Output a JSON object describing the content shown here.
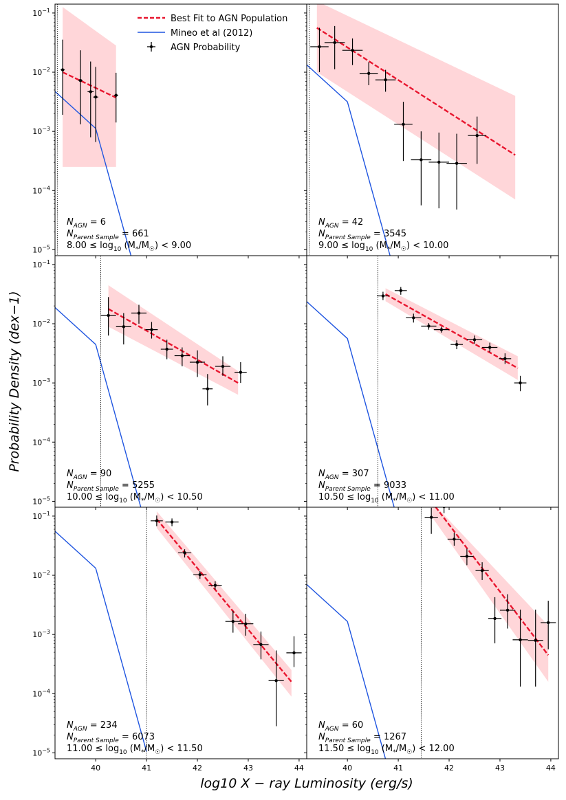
{
  "chart_data": {
    "type": "scatter",
    "xlabel": "log10 X − ray Luminosity (erg/s)",
    "ylabel": "Probability Density (dex−1)",
    "xlim": [
      39.2,
      44.15
    ],
    "ylim_log10": [
      -5.1,
      -0.85
    ],
    "x_ticks": [
      40,
      41,
      42,
      43,
      44
    ],
    "y_ticks": [
      {
        "label": "10",
        "exp": "−1",
        "log": -1
      },
      {
        "label": "10",
        "exp": "−2",
        "log": -2
      },
      {
        "label": "10",
        "exp": "−3",
        "log": -3
      },
      {
        "label": "10",
        "exp": "−4",
        "log": -4
      },
      {
        "label": "10",
        "exp": "−5",
        "log": -5
      }
    ],
    "legend": {
      "placement": "upper-center of top-left panel",
      "entries": [
        {
          "key": "fit",
          "label": "Best Fit to AGN Population",
          "color": "#e8162f",
          "style": "dashed"
        },
        {
          "key": "mineo",
          "label": "Mineo et al (2012)",
          "color": "#1f55e0",
          "style": "solid"
        },
        {
          "key": "points",
          "label": "AGN Probability",
          "color": "#000000",
          "style": "errorbar"
        }
      ]
    },
    "mineo_curve": [
      [
        39.0,
        -1.72
      ],
      [
        40.0,
        -2.5
      ],
      [
        41.0,
        -5.6
      ]
    ],
    "panels": [
      {
        "n_agn": "6",
        "n_parent": "661",
        "range_lo": "8.00",
        "range_hi": "9.00",
        "cutoff_x": 39.25,
        "mineo_offset": -0.45,
        "fit": {
          "x": [
            39.35,
            40.4
          ],
          "y": [
            -2.0,
            -2.43
          ]
        },
        "band": {
          "x": [
            39.35,
            40.4
          ],
          "lo": [
            -3.6,
            -3.6
          ],
          "hi": [
            -0.9,
            -1.55
          ]
        },
        "points": [
          {
            "x": 39.35,
            "y": -1.96,
            "xerr": 0.04,
            "lo": -2.72,
            "hi": -1.45
          },
          {
            "x": 39.7,
            "y": -2.14,
            "xerr": 0.04,
            "lo": -2.88,
            "hi": -1.63
          },
          {
            "x": 39.9,
            "y": -2.33,
            "xerr": 0.06,
            "lo": -3.1,
            "hi": -1.82
          },
          {
            "x": 40.0,
            "y": -2.42,
            "xerr": 0.05,
            "lo": -3.18,
            "hi": -1.91
          },
          {
            "x": 40.4,
            "y": -2.39,
            "xerr": 0.04,
            "lo": -2.85,
            "hi": -2.01
          }
        ]
      },
      {
        "n_agn": "42",
        "n_parent": "3545",
        "range_lo": "9.00",
        "range_hi": "10.00",
        "cutoff_x": 39.25,
        "mineo_offset": 0.0,
        "fit": {
          "x": [
            39.4,
            43.3
          ],
          "y": [
            -1.25,
            -3.4
          ]
        },
        "band": {
          "x": [
            39.4,
            43.3
          ],
          "lo": [
            -2.0,
            -4.15
          ],
          "hi": [
            -0.8,
            -2.4
          ]
        },
        "points": [
          {
            "x": 39.45,
            "y": -1.57,
            "xerr": 0.18,
            "lo": -2.0,
            "hi": -1.25
          },
          {
            "x": 39.75,
            "y": -1.5,
            "xerr": 0.2,
            "lo": -1.95,
            "hi": -1.22
          },
          {
            "x": 40.1,
            "y": -1.63,
            "xerr": 0.2,
            "lo": -1.88,
            "hi": -1.43
          },
          {
            "x": 40.42,
            "y": -2.02,
            "xerr": 0.18,
            "lo": -2.22,
            "hi": -1.83
          },
          {
            "x": 40.75,
            "y": -2.13,
            "xerr": 0.2,
            "lo": -2.33,
            "hi": -1.96
          },
          {
            "x": 41.1,
            "y": -2.88,
            "xerr": 0.18,
            "lo": -3.5,
            "hi": -2.5
          },
          {
            "x": 41.45,
            "y": -3.48,
            "xerr": 0.2,
            "lo": -4.25,
            "hi": -3.0
          },
          {
            "x": 41.8,
            "y": -3.52,
            "xerr": 0.2,
            "lo": -4.3,
            "hi": -3.02
          },
          {
            "x": 42.15,
            "y": -3.54,
            "xerr": 0.2,
            "lo": -4.32,
            "hi": -3.04
          },
          {
            "x": 42.55,
            "y": -3.07,
            "xerr": 0.18,
            "lo": -3.55,
            "hi": -2.75
          }
        ]
      },
      {
        "n_agn": "90",
        "n_parent": "5255",
        "range_lo": "10.00",
        "range_hi": "10.50",
        "cutoff_x": 40.1,
        "mineo_offset": 0.15,
        "fit": {
          "x": [
            40.25,
            42.8
          ],
          "y": [
            -1.75,
            -3.0
          ]
        },
        "band": {
          "x": [
            40.25,
            42.8
          ],
          "lo": [
            -2.05,
            -3.2
          ],
          "hi": [
            -1.35,
            -2.8
          ]
        },
        "points": [
          {
            "x": 40.25,
            "y": -1.86,
            "xerr": 0.15,
            "lo": -2.2,
            "hi": -1.55
          },
          {
            "x": 40.55,
            "y": -2.05,
            "xerr": 0.15,
            "lo": -2.35,
            "hi": -1.82
          },
          {
            "x": 40.85,
            "y": -1.82,
            "xerr": 0.15,
            "lo": -2.0,
            "hi": -1.68
          },
          {
            "x": 41.1,
            "y": -2.1,
            "xerr": 0.12,
            "lo": -2.25,
            "hi": -1.97
          },
          {
            "x": 41.4,
            "y": -2.43,
            "xerr": 0.12,
            "lo": -2.6,
            "hi": -2.27
          },
          {
            "x": 41.7,
            "y": -2.54,
            "xerr": 0.15,
            "lo": -2.72,
            "hi": -2.4
          },
          {
            "x": 42.0,
            "y": -2.65,
            "xerr": 0.15,
            "lo": -2.9,
            "hi": -2.45
          },
          {
            "x": 42.2,
            "y": -3.1,
            "xerr": 0.1,
            "lo": -3.38,
            "hi": -2.85
          },
          {
            "x": 42.5,
            "y": -2.72,
            "xerr": 0.15,
            "lo": -2.88,
            "hi": -2.55
          },
          {
            "x": 42.85,
            "y": -2.82,
            "xerr": 0.12,
            "lo": -3.0,
            "hi": -2.65
          }
        ]
      },
      {
        "n_agn": "307",
        "n_parent": "9033",
        "range_lo": "10.50",
        "range_hi": "11.00",
        "cutoff_x": 40.6,
        "mineo_offset": 0.25,
        "fit": {
          "x": [
            40.75,
            43.35
          ],
          "y": [
            -1.5,
            -2.75
          ]
        },
        "band": {
          "x": [
            40.75,
            43.35
          ],
          "lo": [
            -1.62,
            -2.95
          ],
          "hi": [
            -1.4,
            -2.55
          ]
        },
        "points": [
          {
            "x": 40.7,
            "y": -1.53,
            "xerr": 0.12,
            "lo": -1.6,
            "hi": -1.46
          },
          {
            "x": 41.05,
            "y": -1.44,
            "xerr": 0.12,
            "lo": -1.51,
            "hi": -1.38
          },
          {
            "x": 41.3,
            "y": -1.9,
            "xerr": 0.15,
            "lo": -1.98,
            "hi": -1.83
          },
          {
            "x": 41.6,
            "y": -2.04,
            "xerr": 0.15,
            "lo": -2.1,
            "hi": -1.99
          },
          {
            "x": 41.85,
            "y": -2.1,
            "xerr": 0.15,
            "lo": -2.15,
            "hi": -2.05
          },
          {
            "x": 42.15,
            "y": -2.35,
            "xerr": 0.12,
            "lo": -2.43,
            "hi": -2.28
          },
          {
            "x": 42.5,
            "y": -2.27,
            "xerr": 0.15,
            "lo": -2.34,
            "hi": -2.2
          },
          {
            "x": 42.8,
            "y": -2.4,
            "xerr": 0.15,
            "lo": -2.48,
            "hi": -2.32
          },
          {
            "x": 43.1,
            "y": -2.59,
            "xerr": 0.12,
            "lo": -2.68,
            "hi": -2.5
          },
          {
            "x": 43.4,
            "y": -3.0,
            "xerr": 0.12,
            "lo": -3.14,
            "hi": -2.88
          }
        ]
      },
      {
        "n_agn": "234",
        "n_parent": "6073",
        "range_lo": "11.00",
        "range_hi": "11.50",
        "cutoff_x": 41.0,
        "mineo_offset": 0.62,
        "fit": {
          "x": [
            41.2,
            43.85
          ],
          "y": [
            -1.05,
            -3.8
          ]
        },
        "band": {
          "x": [
            41.2,
            43.85
          ],
          "lo": [
            -1.2,
            -4.05
          ],
          "hi": [
            -0.92,
            -3.6
          ]
        },
        "points": [
          {
            "x": 41.2,
            "y": -1.08,
            "xerr": 0.12,
            "lo": -1.17,
            "hi": -0.99
          },
          {
            "x": 41.5,
            "y": -1.1,
            "xerr": 0.13,
            "lo": -1.17,
            "hi": -1.04
          },
          {
            "x": 41.75,
            "y": -1.62,
            "xerr": 0.13,
            "lo": -1.7,
            "hi": -1.56
          },
          {
            "x": 42.05,
            "y": -1.99,
            "xerr": 0.13,
            "lo": -2.06,
            "hi": -1.93
          },
          {
            "x": 42.35,
            "y": -2.17,
            "xerr": 0.13,
            "lo": -2.24,
            "hi": -2.1
          },
          {
            "x": 42.7,
            "y": -2.78,
            "xerr": 0.15,
            "lo": -2.97,
            "hi": -2.6
          },
          {
            "x": 42.95,
            "y": -2.82,
            "xerr": 0.15,
            "lo": -3.02,
            "hi": -2.65
          },
          {
            "x": 43.25,
            "y": -3.17,
            "xerr": 0.15,
            "lo": -3.42,
            "hi": -2.95
          },
          {
            "x": 43.55,
            "y": -3.78,
            "xerr": 0.15,
            "lo": -4.55,
            "hi": -3.27
          },
          {
            "x": 43.9,
            "y": -3.31,
            "xerr": 0.15,
            "lo": -3.55,
            "hi": -3.03
          }
        ]
      },
      {
        "n_agn": "60",
        "n_parent": "1267",
        "range_lo": "11.50",
        "range_hi": "12.00",
        "cutoff_x": 41.45,
        "mineo_offset": -0.28,
        "fit": {
          "x": [
            41.65,
            43.95
          ],
          "y": [
            -0.75,
            -3.35
          ]
        },
        "band": {
          "x": [
            41.65,
            43.95
          ],
          "lo": [
            -1.0,
            -3.8
          ],
          "hi": [
            -0.75,
            -2.85
          ]
        },
        "points": [
          {
            "x": 41.65,
            "y": -1.02,
            "xerr": 0.13,
            "lo": -1.3,
            "hi": -0.86
          },
          {
            "x": 41.9,
            "y": -0.84,
            "xerr": 0.15,
            "lo": -0.95,
            "hi": -0.75
          },
          {
            "x": 42.1,
            "y": -1.39,
            "xerr": 0.13,
            "lo": -1.5,
            "hi": -1.28
          },
          {
            "x": 42.35,
            "y": -1.68,
            "xerr": 0.13,
            "lo": -1.83,
            "hi": -1.55
          },
          {
            "x": 42.65,
            "y": -1.92,
            "xerr": 0.13,
            "lo": -2.08,
            "hi": -1.78
          },
          {
            "x": 42.9,
            "y": -2.73,
            "xerr": 0.13,
            "lo": -3.15,
            "hi": -2.37
          },
          {
            "x": 43.15,
            "y": -2.59,
            "xerr": 0.15,
            "lo": -2.9,
            "hi": -2.32
          },
          {
            "x": 43.4,
            "y": -3.09,
            "xerr": 0.15,
            "lo": -3.88,
            "hi": -2.58
          },
          {
            "x": 43.7,
            "y": -3.1,
            "xerr": 0.15,
            "lo": -3.88,
            "hi": -2.58
          },
          {
            "x": 43.95,
            "y": -2.8,
            "xerr": 0.15,
            "lo": -3.25,
            "hi": -2.43
          }
        ]
      }
    ]
  }
}
